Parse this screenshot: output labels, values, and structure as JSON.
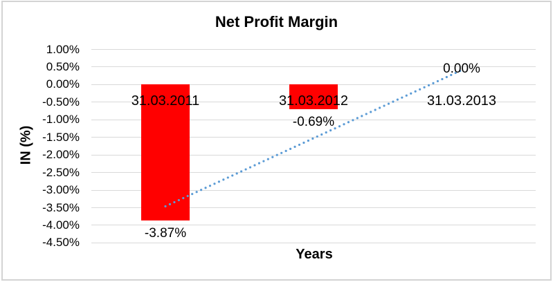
{
  "window": {
    "background": "#FFFFFF",
    "border_color": "#D3D3D3",
    "text_color": "#000000"
  },
  "chart_data": {
    "type": "bar",
    "title": "Net Profit Margin",
    "xlabel": "Years",
    "ylabel": "IN (%)",
    "categories": [
      "31.03.2011",
      "31.03.2012",
      "31.03.2013"
    ],
    "values": [
      -3.87,
      -0.69,
      0.0
    ],
    "data_labels": [
      "-3.87%",
      "-0.69%",
      "0.00%"
    ],
    "bar_color": "#FF0000",
    "ylim": [
      -4.5,
      1.0
    ],
    "ytick_step": 0.5,
    "ytick_labels": [
      "1.00%",
      "0.50%",
      "0.00%",
      "-0.50%",
      "-1.00%",
      "-1.50%",
      "-2.00%",
      "-2.50%",
      "-3.00%",
      "-3.50%",
      "-4.00%",
      "-4.50%"
    ],
    "grid": true,
    "gridline_color": "#D9D9D9",
    "legend": "none",
    "trendline": {
      "type": "linear",
      "style": "dotted",
      "color": "#5B9BD5",
      "start_value": -3.46,
      "end_value": 0.41
    }
  }
}
